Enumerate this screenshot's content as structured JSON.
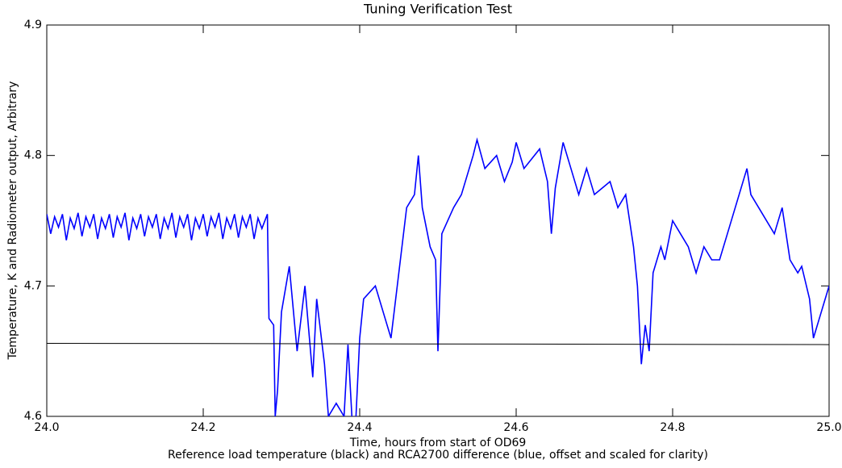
{
  "chart_data": {
    "type": "line",
    "title": "Tuning Verification Test",
    "x_label": "Time, hours from start of OD69",
    "caption": "Reference load temperature (black) and RCA2700 difference (blue, offset and scaled for clarity)",
    "y_label": "Temperature, K and Radiometer output, Arbitrary",
    "xlim": [
      24.0,
      25.0
    ],
    "ylim": [
      4.6,
      4.9
    ],
    "xticks": [
      {
        "value": 24.0,
        "label": "24.0"
      },
      {
        "value": 24.2,
        "label": "24.2"
      },
      {
        "value": 24.4,
        "label": "24.4"
      },
      {
        "value": 24.6,
        "label": "24.6"
      },
      {
        "value": 24.8,
        "label": "24.8"
      },
      {
        "value": 25.0,
        "label": "25.0"
      }
    ],
    "yticks": [
      4.6,
      4.7,
      4.8,
      4.9
    ],
    "grid": false,
    "series": [
      {
        "color": "#0000ff",
        "x": [
          24.0,
          24.005,
          24.01,
          24.015,
          24.02,
          24.025,
          24.03,
          24.035,
          24.04,
          24.045,
          24.05,
          24.055,
          24.06,
          24.065,
          24.07,
          24.075,
          24.08,
          24.085,
          24.09,
          24.095,
          24.1,
          24.105,
          24.11,
          24.115,
          24.12,
          24.125,
          24.13,
          24.135,
          24.14,
          24.145,
          24.15,
          24.155,
          24.16,
          24.165,
          24.17,
          24.175,
          24.18,
          24.185,
          24.19,
          24.195,
          24.2,
          24.205,
          24.21,
          24.215,
          24.22,
          24.225,
          24.23,
          24.235,
          24.24,
          24.245,
          24.25,
          24.255,
          24.26,
          24.265,
          24.27,
          24.275,
          24.282,
          24.284,
          24.29,
          24.292,
          24.295,
          24.3,
          24.31,
          24.32,
          24.33,
          24.34,
          24.345,
          24.355,
          24.36,
          24.37,
          24.38,
          24.385,
          24.39,
          24.395,
          24.4,
          24.405,
          24.42,
          24.43,
          24.44,
          24.45,
          24.46,
          24.47,
          24.475,
          24.48,
          24.49,
          24.497,
          24.5,
          24.505,
          24.52,
          24.53,
          24.545,
          24.55,
          24.56,
          24.575,
          24.585,
          24.595,
          24.6,
          24.61,
          24.63,
          24.64,
          24.645,
          24.65,
          24.66,
          24.67,
          24.68,
          24.69,
          24.7,
          24.72,
          24.73,
          24.74,
          24.75,
          24.755,
          24.76,
          24.765,
          24.77,
          24.775,
          24.785,
          24.79,
          24.8,
          24.81,
          24.82,
          24.83,
          24.84,
          24.85,
          24.86,
          24.87,
          24.88,
          24.895,
          24.9,
          24.91,
          24.93,
          24.94,
          24.95,
          24.96,
          24.965,
          24.975,
          24.98,
          24.99,
          25.0
        ],
        "values": [
          4.755,
          4.74,
          4.753,
          4.745,
          4.755,
          4.735,
          4.752,
          4.744,
          4.756,
          4.738,
          4.753,
          4.745,
          4.755,
          4.736,
          4.752,
          4.744,
          4.755,
          4.737,
          4.753,
          4.745,
          4.756,
          4.735,
          4.752,
          4.744,
          4.755,
          4.738,
          4.753,
          4.745,
          4.755,
          4.736,
          4.752,
          4.744,
          4.756,
          4.737,
          4.753,
          4.745,
          4.755,
          4.735,
          4.752,
          4.744,
          4.755,
          4.738,
          4.753,
          4.745,
          4.756,
          4.736,
          4.752,
          4.744,
          4.755,
          4.737,
          4.753,
          4.745,
          4.755,
          4.736,
          4.752,
          4.744,
          4.755,
          4.675,
          4.67,
          4.6,
          4.62,
          4.68,
          4.715,
          4.65,
          4.7,
          4.63,
          4.69,
          4.64,
          4.6,
          4.61,
          4.6,
          4.655,
          4.6,
          4.597,
          4.66,
          4.69,
          4.7,
          4.68,
          4.66,
          4.71,
          4.76,
          4.77,
          4.8,
          4.76,
          4.73,
          4.72,
          4.65,
          4.74,
          4.76,
          4.77,
          4.8,
          4.812,
          4.79,
          4.8,
          4.78,
          4.795,
          4.81,
          4.79,
          4.805,
          4.78,
          4.74,
          4.775,
          4.81,
          4.79,
          4.77,
          4.79,
          4.77,
          4.78,
          4.76,
          4.77,
          4.73,
          4.7,
          4.64,
          4.67,
          4.65,
          4.71,
          4.73,
          4.72,
          4.75,
          4.74,
          4.73,
          4.71,
          4.73,
          4.72,
          4.72,
          4.74,
          4.76,
          4.79,
          4.77,
          4.76,
          4.74,
          4.76,
          4.72,
          4.71,
          4.715,
          4.69,
          4.66,
          4.68,
          4.7
        ]
      },
      {
        "color": "#000000",
        "x": [
          24.0,
          25.0
        ],
        "values": [
          4.656,
          4.655
        ]
      }
    ]
  }
}
